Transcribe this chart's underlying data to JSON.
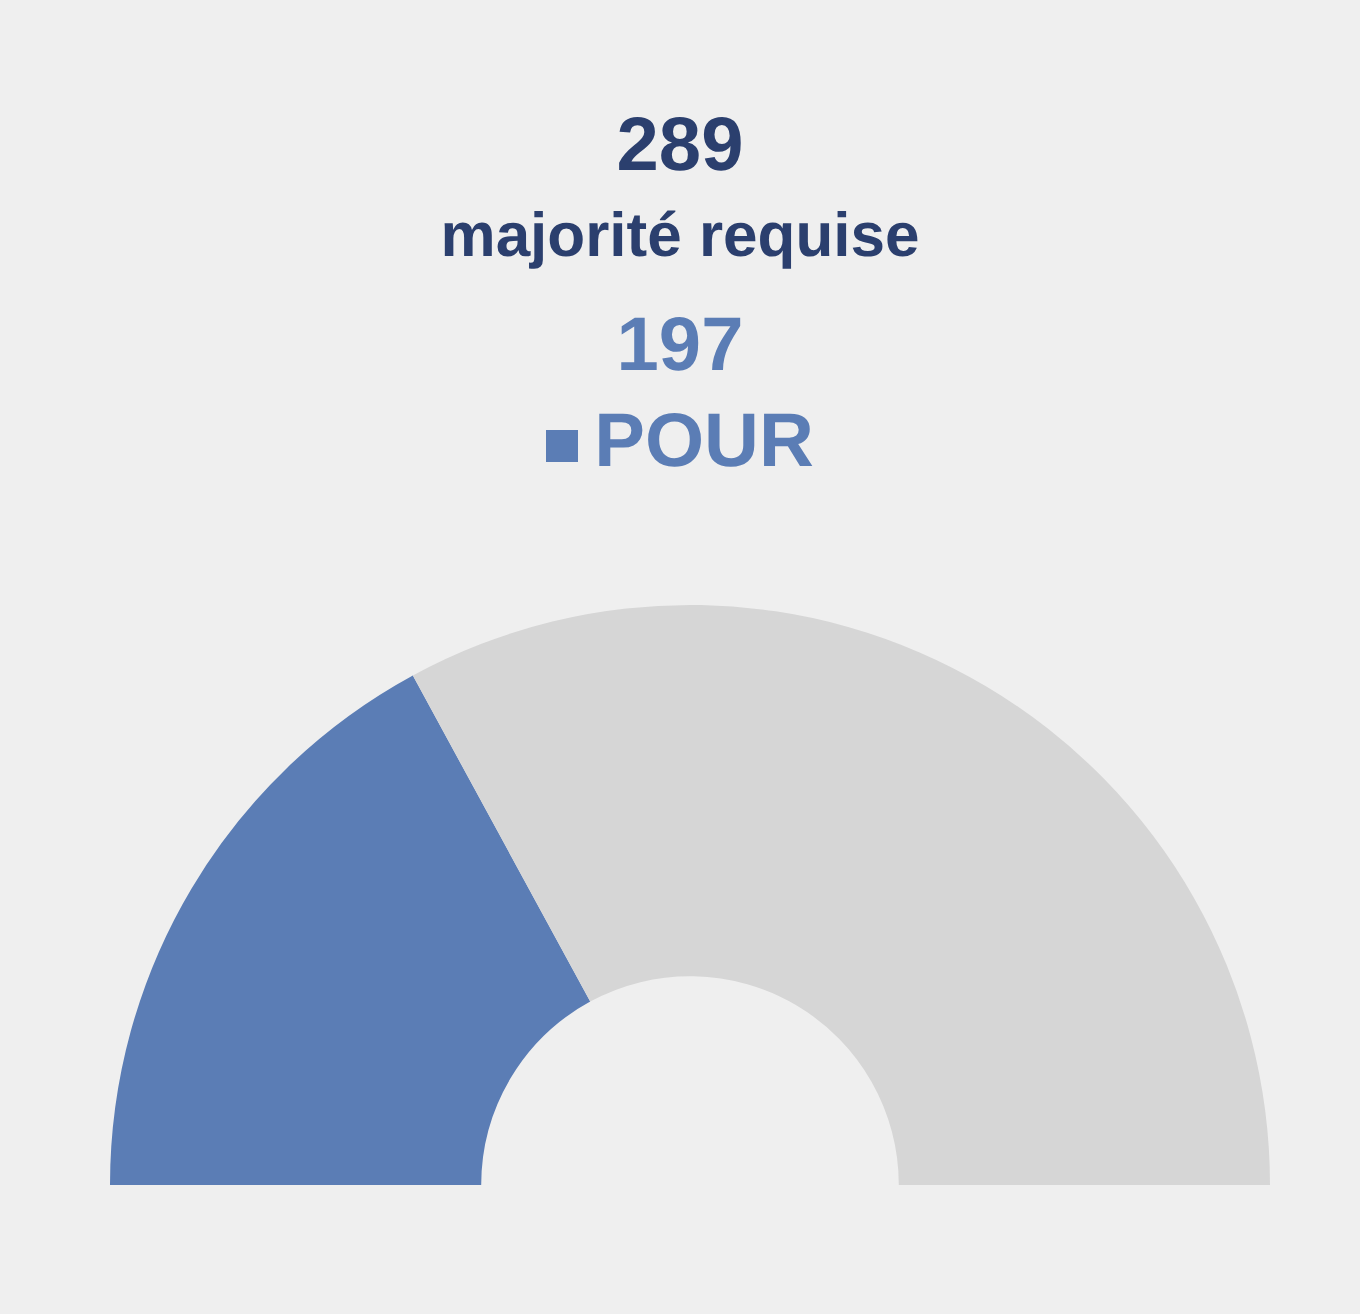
{
  "chart_data": {
    "type": "donut",
    "title": "289",
    "subtitle": "majorité requise",
    "categories": [
      "POUR",
      null
    ],
    "values": [
      197,
      380
    ],
    "colors": [
      "#5b7db5",
      "#d6d6d6"
    ],
    "value_labels": [
      "197",
      null
    ]
  }
}
